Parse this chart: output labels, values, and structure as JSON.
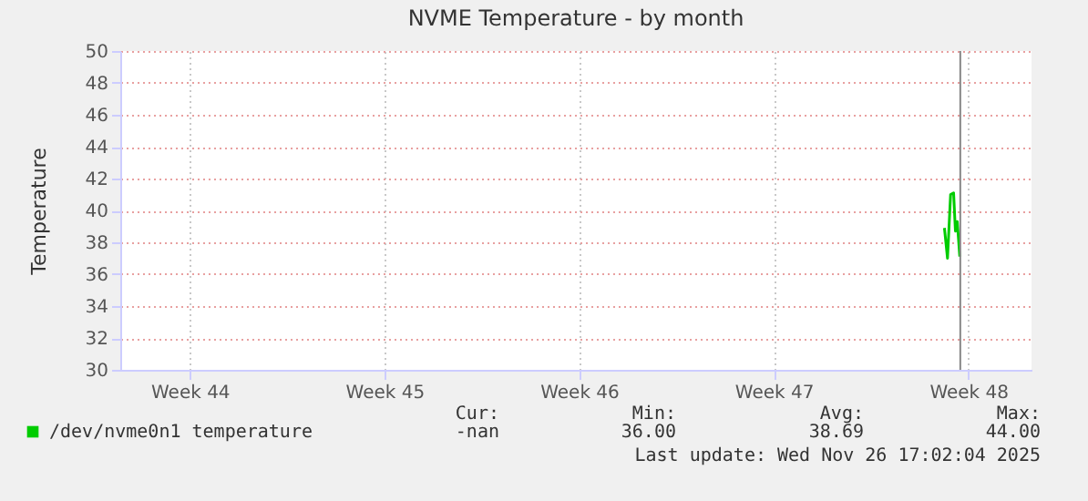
{
  "chart_data": {
    "type": "line",
    "title": "NVME Temperature - by month",
    "ylabel": "Temperature",
    "xlim": [
      "2025-10-27T12:00",
      "2025-11-29T06:30"
    ],
    "xticks": [
      {
        "value": "2025-10-30",
        "label": "Week 44"
      },
      {
        "value": "2025-11-06",
        "label": "Week 45"
      },
      {
        "value": "2025-11-13",
        "label": "Week 46"
      },
      {
        "value": "2025-11-20",
        "label": "Week 47"
      },
      {
        "value": "2025-11-27",
        "label": "Week 48"
      }
    ],
    "ylim": [
      30,
      50
    ],
    "yticks": [
      30,
      32,
      34,
      36,
      38,
      40,
      42,
      44,
      46,
      48,
      50
    ],
    "grid": true,
    "legend": "bottom",
    "series": [
      {
        "name": "/dev/nvme0n1 temperature",
        "color": "#00cc00",
        "x": [
          "2025-11-26T03:20",
          "2025-11-26T06:00",
          "2025-11-26T08:40",
          "2025-11-26T11:15",
          "2025-11-26T12:50",
          "2025-11-26T14:25",
          "2025-11-26T16:35"
        ],
        "values": [
          38.9,
          37.0,
          41.0,
          41.1,
          38.7,
          39.3,
          37.1
        ]
      }
    ],
    "ref_lines": [
      {
        "axis": "x",
        "value": "2025-11-26T17:02",
        "color": "#888888"
      }
    ],
    "annotations": [
      "Cur:",
      "Min:",
      "Avg:",
      "Max:",
      "-nan",
      "36.00",
      "38.69",
      "44.00",
      "Last update: Wed Nov 26 17:02:04 2025"
    ]
  }
}
